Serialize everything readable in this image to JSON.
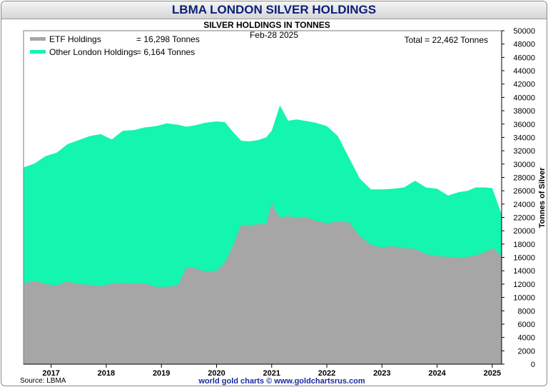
{
  "chart_data": {
    "type": "area",
    "title": "LBMA LONDON SILVER HOLDINGS",
    "subtitle": "SILVER HOLDINGS IN TONNES",
    "date_label": "Feb-28  2025",
    "total_label": "Total = 22,462 Tonnes",
    "ylabel": "Tonnes of Silver",
    "ylim": [
      0,
      50000
    ],
    "y_ticks": [
      0,
      2000,
      4000,
      6000,
      8000,
      10000,
      12000,
      14000,
      16000,
      18000,
      20000,
      22000,
      24000,
      26000,
      28000,
      30000,
      32000,
      34000,
      36000,
      38000,
      40000,
      42000,
      44000,
      46000,
      48000,
      50000
    ],
    "x_range": [
      2016.5,
      2025.17
    ],
    "x_tick_labels": [
      {
        "label": "2017",
        "x": 2017.0
      },
      {
        "label": "2018",
        "x": 2018.0
      },
      {
        "label": "2019",
        "x": 2019.0
      },
      {
        "label": "2020",
        "x": 2020.0
      },
      {
        "label": "2021",
        "x": 2021.0
      },
      {
        "label": "2022",
        "x": 2022.0
      },
      {
        "label": "2023",
        "x": 2023.0
      },
      {
        "label": "2024",
        "x": 2024.0
      },
      {
        "label": "2025",
        "x": 2025.0
      }
    ],
    "legend": [
      {
        "name": "ETF Holdings",
        "value_text": "= 16,298 Tonnes",
        "color": "#a6a6a6"
      },
      {
        "name": "Other London Holdings",
        "value_text": "= 6,164 Tonnes",
        "color": "#14f5b0"
      }
    ],
    "x": [
      2016.5,
      2016.7,
      2016.9,
      2017.1,
      2017.3,
      2017.5,
      2017.7,
      2017.9,
      2018.1,
      2018.3,
      2018.5,
      2018.7,
      2018.9,
      2019.1,
      2019.3,
      2019.45,
      2019.6,
      2019.8,
      2020.0,
      2020.15,
      2020.3,
      2020.45,
      2020.6,
      2020.75,
      2020.9,
      2021.0,
      2021.08,
      2021.15,
      2021.3,
      2021.45,
      2021.6,
      2021.8,
      2022.0,
      2022.2,
      2022.4,
      2022.6,
      2022.8,
      2023.0,
      2023.2,
      2023.4,
      2023.6,
      2023.8,
      2024.0,
      2024.2,
      2024.4,
      2024.55,
      2024.7,
      2024.85,
      2025.0,
      2025.17
    ],
    "series": [
      {
        "name": "ETF Holdings",
        "values": [
          12100,
          12500,
          12000,
          11800,
          12400,
          12000,
          11900,
          11700,
          12100,
          12200,
          12100,
          12100,
          11600,
          11600,
          11800,
          14500,
          14400,
          13900,
          14000,
          15200,
          17800,
          20900,
          20800,
          21000,
          21000,
          24200,
          22800,
          22000,
          22200,
          22000,
          22100,
          21500,
          21100,
          21400,
          21300,
          19200,
          17900,
          17500,
          17700,
          17400,
          17300,
          16500,
          16200,
          16100,
          16000,
          16100,
          16300,
          16700,
          17400,
          16298
        ]
      },
      {
        "name": "Total Holdings",
        "values": [
          29500,
          30100,
          31200,
          31700,
          33000,
          33600,
          34200,
          34500,
          33700,
          35000,
          35100,
          35500,
          35700,
          36100,
          35900,
          35600,
          35800,
          36200,
          36400,
          36300,
          34800,
          33500,
          33400,
          33600,
          34000,
          35000,
          37000,
          38800,
          36500,
          36700,
          36500,
          36200,
          35700,
          34200,
          31000,
          27800,
          26200,
          26200,
          26300,
          26500,
          27500,
          26500,
          26300,
          25300,
          25800,
          26000,
          26500,
          26500,
          26400,
          22462
        ]
      }
    ],
    "footer_left": "Source: LBMA",
    "footer_center": "world gold charts © www.goldchartsrus.com"
  }
}
